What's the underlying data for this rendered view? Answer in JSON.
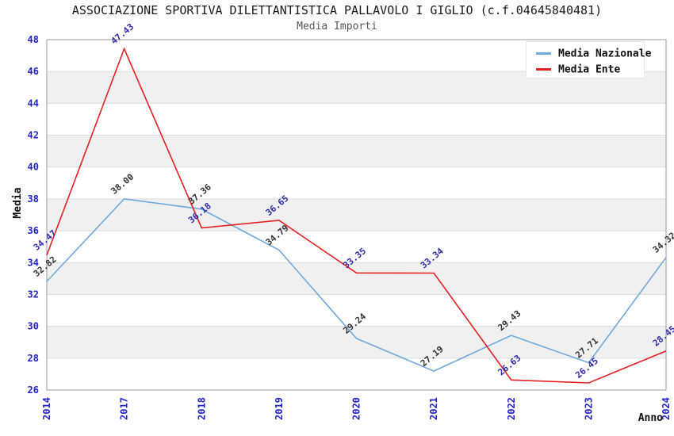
{
  "header": {
    "title": "ASSOCIAZIONE SPORTIVA DILETTANTISTICA PALLAVOLO I GIGLIO (c.f.04645840481)",
    "subtitle": "Media Importi"
  },
  "legend": {
    "position": "top-right",
    "items": [
      {
        "label": "Media Nazionale",
        "color": "#6FA8DC"
      },
      {
        "label": "Media Ente",
        "color": "#E62020"
      }
    ]
  },
  "chart_data": {
    "type": "line",
    "title": "ASSOCIAZIONE SPORTIVA DILETTANTISTICA PALLAVOLO I GIGLIO (c.f.04645840481)",
    "subtitle": "Media Importi",
    "xlabel": "Anno",
    "ylabel": "Media",
    "categories": [
      "2014",
      "2017",
      "2018",
      "2019",
      "2020",
      "2021",
      "2022",
      "2023",
      "2024"
    ],
    "series": [
      {
        "name": "Media Nazionale",
        "color": "#6FA8DC",
        "label_color": "#333333",
        "values": [
          32.82,
          38.0,
          37.36,
          34.79,
          29.24,
          27.19,
          29.43,
          27.71,
          34.32
        ]
      },
      {
        "name": "Media Ente",
        "color": "#E62020",
        "label_color": "#2E2EAD",
        "values": [
          34.47,
          47.43,
          36.18,
          36.65,
          33.35,
          33.34,
          26.63,
          26.45,
          28.45
        ]
      }
    ],
    "ylim": [
      26,
      48
    ],
    "ytick_step": 2,
    "grid": true,
    "banding": true,
    "legend_position": "top-right",
    "colors": {
      "tick": "#2222CC",
      "band": "#F0F0F0",
      "gridline": "#DCDCDC",
      "border": "#999999"
    }
  }
}
